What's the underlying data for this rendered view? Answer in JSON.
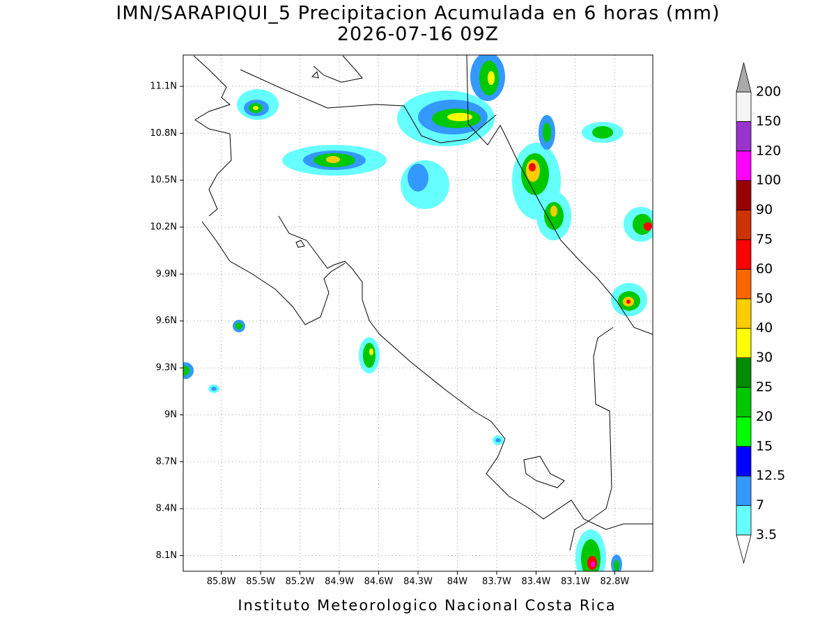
{
  "chart_data": {
    "type": "map",
    "title": "IMN/SARAPIQUI_5 Precipitacion Acumulada en 6 horas (mm)",
    "subtitle": "2026-07-16 09Z",
    "footer": "Instituto Meteorologico Nacional Costa Rica",
    "xlim": [
      -86.09,
      -82.51
    ],
    "ylim": [
      8.0,
      11.3
    ],
    "xticks": [
      {
        "value": -85.8,
        "label": "85.8W"
      },
      {
        "value": -85.5,
        "label": "85.5W"
      },
      {
        "value": -85.2,
        "label": "85.2W"
      },
      {
        "value": -84.9,
        "label": "84.9W"
      },
      {
        "value": -84.6,
        "label": "84.6W"
      },
      {
        "value": -84.3,
        "label": "84.3W"
      },
      {
        "value": -84,
        "label": "84W"
      },
      {
        "value": -83.7,
        "label": "83.7W"
      },
      {
        "value": -83.4,
        "label": "83.4W"
      },
      {
        "value": -83.1,
        "label": "83.1W"
      },
      {
        "value": -82.8,
        "label": "82.8W"
      }
    ],
    "yticks": [
      {
        "value": 8.1,
        "label": "8.1N"
      },
      {
        "value": 8.4,
        "label": "8.4N"
      },
      {
        "value": 8.7,
        "label": "8.7N"
      },
      {
        "value": 9,
        "label": "9N"
      },
      {
        "value": 9.3,
        "label": "9.3N"
      },
      {
        "value": 9.6,
        "label": "9.6N"
      },
      {
        "value": 9.9,
        "label": "9.9N"
      },
      {
        "value": 10.2,
        "label": "10.2N"
      },
      {
        "value": 10.5,
        "label": "10.5N"
      },
      {
        "value": 10.8,
        "label": "10.8N"
      },
      {
        "value": 11.1,
        "label": "11.1N"
      }
    ],
    "grid": true,
    "colorbar": {
      "levels": [
        3.5,
        7,
        12.5,
        15,
        20,
        25,
        30,
        40,
        50,
        60,
        75,
        90,
        100,
        120,
        150,
        200
      ],
      "colors": [
        "#66ffff",
        "#3399ff",
        "#0000ff",
        "#00ff00",
        "#00c800",
        "#008c00",
        "#ffff00",
        "#ffcc00",
        "#ff6600",
        "#ff0000",
        "#cc3300",
        "#990000",
        "#ff00ff",
        "#9933cc",
        "#f5f5f5"
      ],
      "under_color": "#ffffff",
      "over_color": "#aaaaaa"
    }
  }
}
